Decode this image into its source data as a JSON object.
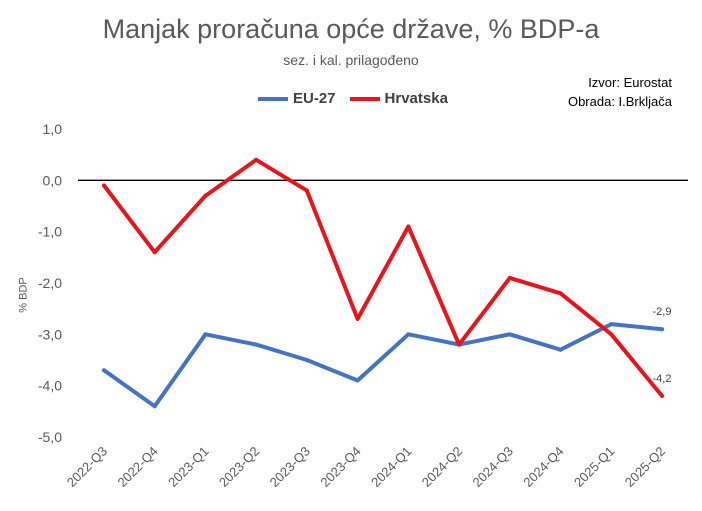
{
  "chart_data": {
    "type": "line",
    "title": "Manjak proračuna opće države, % BDP-a",
    "subtitle": "sez. i kal. prilagođeno",
    "source_lines": [
      "Izvor: Eurostat",
      "Obrada: I.Brkljača"
    ],
    "ylabel": "% BDP",
    "ylim": [
      -5,
      1
    ],
    "yticks": [
      1,
      0,
      -1,
      -2,
      -3,
      -4,
      -5
    ],
    "ytick_labels": [
      "1,0",
      "0,0",
      "-1,0",
      "-2,0",
      "-3,0",
      "-4,0",
      "-5,0"
    ],
    "categories": [
      "2022-Q3",
      "2022-Q4",
      "2023-Q1",
      "2023-Q2",
      "2023-Q3",
      "2023-Q4",
      "2024-Q1",
      "2024-Q2",
      "2024-Q3",
      "2024-Q4",
      "2025-Q1",
      "2025-Q2"
    ],
    "legend_position": "top",
    "series": [
      {
        "name": "EU-27",
        "color": "#4472C4",
        "values": [
          -3.7,
          -4.4,
          -3.0,
          -3.2,
          -3.5,
          -3.9,
          -3.0,
          -3.2,
          -3.0,
          -3.3,
          -2.8,
          -2.9
        ],
        "end_label": "-2,9"
      },
      {
        "name": "Hrvatska",
        "color": "#E8141B",
        "values": [
          -0.1,
          -1.4,
          -0.3,
          0.4,
          -0.2,
          -2.7,
          -0.9,
          -3.2,
          -1.9,
          -2.2,
          -3.0,
          -4.2
        ],
        "end_label": "-4,2"
      }
    ]
  }
}
